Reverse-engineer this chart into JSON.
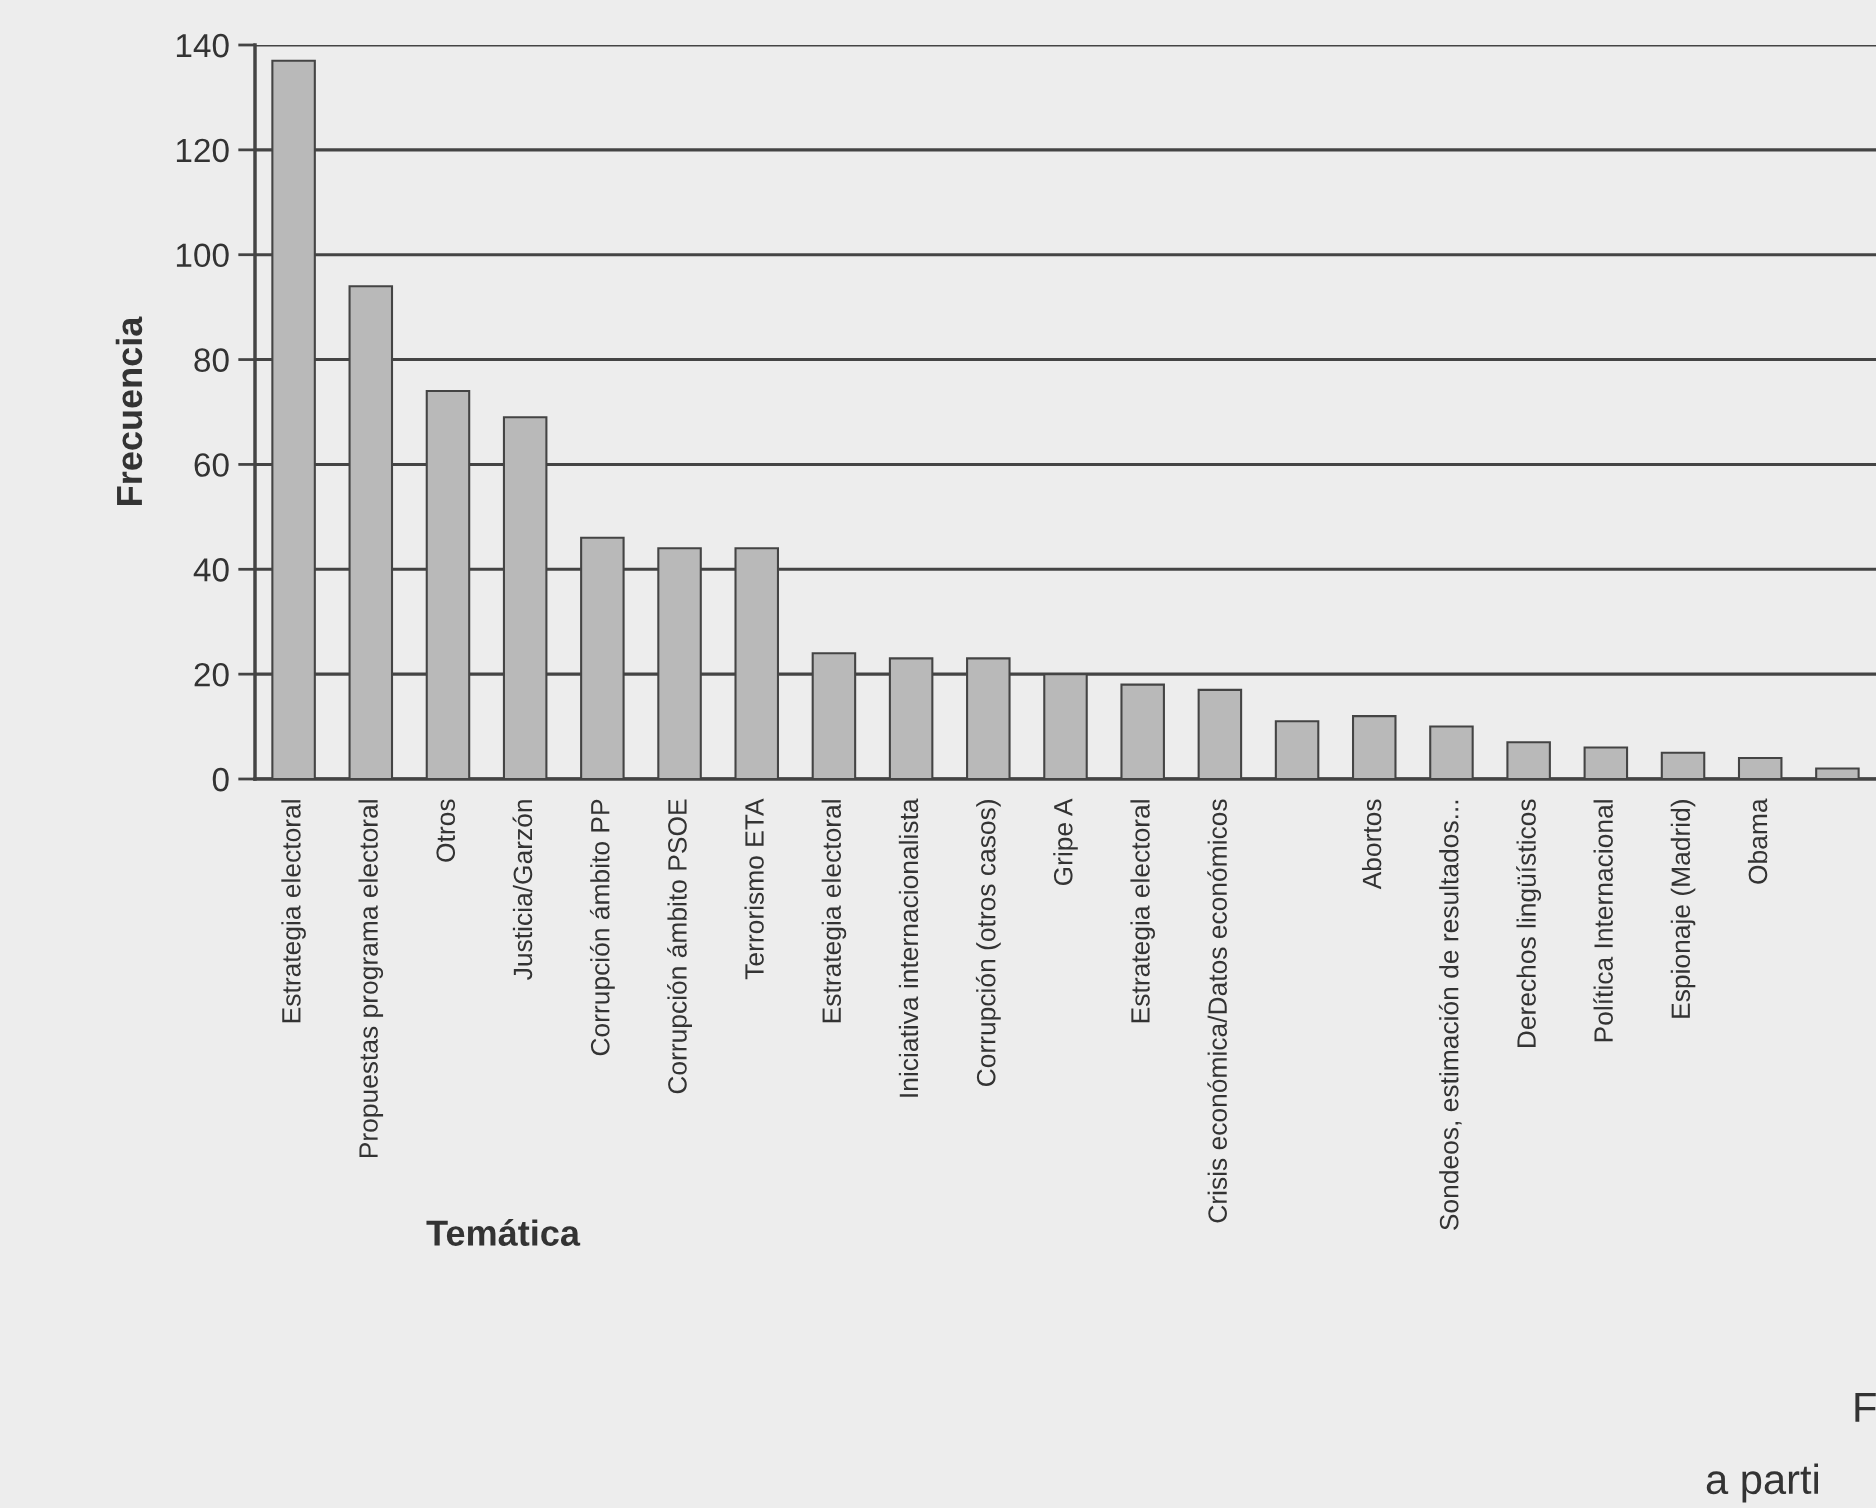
{
  "chart_data": {
    "type": "bar",
    "xlabel": "Temática",
    "ylabel": "Frecuencia",
    "categories": [
      "Estrategia electoral",
      "Propuestas programa electoral",
      "Otros",
      "Justicia/Garzón",
      "Corrupción ámbito PP",
      "Corrupción ámbito PSOE",
      "Terrorismo ETA",
      "Estrategia electoral",
      "Iniciativa internacionalista",
      "Corrupción (otros casos)",
      "Gripe A",
      "Estrategia electoral",
      "Crisis económica/Datos económicos",
      null,
      "Abortos",
      "Sondeos, estimación de resultados...",
      "Derechos lingüísticos",
      "Política Internacional",
      "Espionaje (Madrid)",
      "Obama",
      null
    ],
    "values": [
      137,
      94,
      74,
      69,
      46,
      44,
      44,
      24,
      23,
      23,
      20,
      18,
      17,
      11,
      12,
      10,
      7,
      6,
      5,
      4,
      2
    ],
    "color": "#b9b9b9",
    "ylim": [
      0,
      140
    ],
    "yticks": [
      0,
      20,
      40,
      60,
      80,
      100,
      120,
      140
    ],
    "grid": "y",
    "legend": false,
    "annotations": [
      "F",
      "a parti"
    ]
  }
}
